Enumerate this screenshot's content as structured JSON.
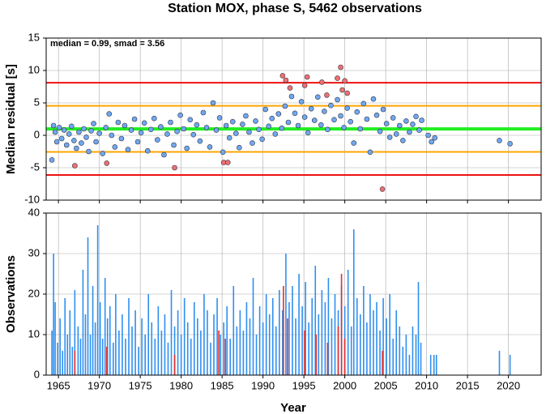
{
  "chart_data": [
    {
      "type": "scatter",
      "title": "Station MOX, phase S, 5462 observations",
      "annotation": "median = 0.99, smad = 3.56",
      "ylabel": "Median residual [s]",
      "xlim": [
        1963.5,
        2024
      ],
      "xticks": [
        1965,
        1970,
        1975,
        1980,
        1985,
        1990,
        1995,
        2000,
        2005,
        2010,
        2015,
        2020
      ],
      "ylim": [
        -10,
        15
      ],
      "yticks": [
        -10,
        -5,
        0,
        5,
        10,
        15
      ],
      "grid": true,
      "reference_lines": [
        {
          "value": 8.11,
          "color": "#ee1111"
        },
        {
          "value": 4.55,
          "color": "#ffa500"
        },
        {
          "value": 0.99,
          "color": "#22ee22"
        },
        {
          "value": -2.57,
          "color": "#ffa500"
        },
        {
          "value": -6.13,
          "color": "#ee1111"
        }
      ],
      "series": [
        {
          "color": "#6fa8f0",
          "x": [
            1964.2,
            1964.4,
            1964.6,
            1964.8,
            1965.1,
            1965.4,
            1965.7,
            1966.0,
            1966.3,
            1966.6,
            1966.9,
            1967.2,
            1967.5,
            1967.8,
            1968.1,
            1968.4,
            1968.7,
            1969.0,
            1969.3,
            1969.6,
            1970.0,
            1970.4,
            1970.8,
            1971.2,
            1971.5,
            1971.9,
            1972.3,
            1972.7,
            1973.1,
            1973.5,
            1973.9,
            1974.3,
            1974.7,
            1975.1,
            1975.5,
            1975.9,
            1976.3,
            1976.7,
            1977.1,
            1977.5,
            1977.9,
            1978.3,
            1978.7,
            1979.1,
            1979.5,
            1979.9,
            1980.3,
            1980.7,
            1981.1,
            1981.5,
            1981.9,
            1982.3,
            1982.7,
            1983.1,
            1983.5,
            1983.9,
            1984.3,
            1984.7,
            1985.1,
            1985.5,
            1985.9,
            1986.3,
            1986.7,
            1987.1,
            1987.5,
            1987.9,
            1988.3,
            1988.7,
            1989.1,
            1989.5,
            1989.9,
            1990.3,
            1990.7,
            1991.1,
            1991.5,
            1991.9,
            1992.3,
            1992.7,
            1993.1,
            1993.5,
            1993.9,
            1994.3,
            1994.7,
            1995.1,
            1995.5,
            1995.9,
            1996.3,
            1996.7,
            1997.1,
            1997.5,
            1997.9,
            1998.3,
            1998.7,
            1999.1,
            1999.5,
            1999.9,
            2000.3,
            2000.7,
            2001.1,
            2001.5,
            2001.9,
            2002.3,
            2002.7,
            2003.1,
            2003.5,
            2003.9,
            2004.3,
            2004.7,
            2005.1,
            2005.5,
            2005.9,
            2006.3,
            2006.7,
            2007.1,
            2007.5,
            2007.9,
            2008.3,
            2008.7,
            2009.1,
            2009.4,
            2010.2,
            2010.6,
            2011.0,
            2018.9,
            2020.2
          ],
          "values": [
            -3.8,
            1.5,
            0.5,
            -1.0,
            1.2,
            -0.5,
            0.8,
            -1.5,
            0.2,
            1.4,
            -0.8,
            -2.0,
            0.5,
            -1.2,
            1.0,
            -0.3,
            -2.5,
            0.7,
            1.8,
            -1.0,
            0.3,
            -2.8,
            1.2,
            3.3,
            0.0,
            -1.8,
            2.0,
            -0.5,
            1.5,
            -2.2,
            0.8,
            2.5,
            -1.0,
            0.4,
            1.9,
            -2.4,
            0.9,
            2.6,
            -0.7,
            1.3,
            -3.0,
            0.2,
            2.0,
            -1.5,
            0.6,
            3.1,
            1.0,
            -2.0,
            2.4,
            0.1,
            1.6,
            -0.9,
            3.5,
            1.2,
            -1.8,
            5.0,
            0.8,
            2.7,
            -2.6,
            1.5,
            -0.4,
            2.1,
            0.3,
            -1.9,
            1.7,
            3.0,
            0.5,
            -1.2,
            2.2,
            0.9,
            -0.6,
            4.0,
            1.4,
            2.6,
            0.2,
            3.3,
            1.1,
            4.5,
            2.0,
            6.0,
            3.4,
            1.5,
            5.2,
            2.8,
            0.4,
            4.1,
            2.3,
            5.9,
            1.6,
            3.7,
            0.9,
            4.6,
            2.4,
            5.5,
            3.0,
            1.2,
            4.2,
            2.1,
            -1.2,
            3.6,
            1.0,
            4.9,
            2.5,
            -2.6,
            5.6,
            3.1,
            0.6,
            4.0,
            1.8,
            -0.3,
            2.7,
            0.2,
            1.5,
            -0.8,
            2.2,
            0.5,
            1.7,
            2.9,
            0.8,
            2.3,
            0.0,
            -1.0,
            -0.4,
            -0.8,
            -1.3
          ]
        },
        {
          "color": "#f07070",
          "x": [
            1967.0,
            1970.9,
            1979.2,
            1985.2,
            1985.7,
            1992.4,
            1992.8,
            1993.3,
            1995.1,
            1995.4,
            1997.2,
            1997.8,
            1999.1,
            1999.5,
            1999.7,
            2000.0,
            2000.3,
            2004.6
          ],
          "values": [
            -4.7,
            -4.3,
            -5.0,
            -4.2,
            -4.2,
            9.2,
            8.5,
            7.3,
            7.7,
            9.0,
            8.2,
            6.2,
            8.8,
            10.5,
            7.0,
            8.4,
            6.5,
            -8.3
          ]
        }
      ]
    },
    {
      "type": "bar",
      "ylabel": "Observations",
      "xlabel": "Year",
      "xlim": [
        1963.5,
        2024
      ],
      "xticks": [
        1965,
        1970,
        1975,
        1980,
        1985,
        1990,
        1995,
        2000,
        2005,
        2010,
        2015,
        2020
      ],
      "ylim": [
        0,
        40
      ],
      "yticks": [
        0,
        10,
        20,
        30,
        40
      ],
      "grid": true,
      "series": [
        {
          "color": "#2f8fef",
          "x": [
            1964.2,
            1964.4,
            1964.6,
            1964.9,
            1965.2,
            1965.5,
            1965.8,
            1966.1,
            1966.4,
            1966.7,
            1967.0,
            1967.4,
            1967.7,
            1968.0,
            1968.3,
            1968.6,
            1968.9,
            1969.2,
            1969.5,
            1969.8,
            1970.1,
            1970.4,
            1970.7,
            1971.0,
            1971.3,
            1971.7,
            1972.0,
            1972.4,
            1972.8,
            1973.2,
            1973.6,
            1974.0,
            1974.4,
            1974.8,
            1975.2,
            1975.6,
            1976.0,
            1976.4,
            1976.8,
            1977.2,
            1977.6,
            1978.0,
            1978.4,
            1978.8,
            1979.2,
            1979.6,
            1980.0,
            1980.4,
            1980.8,
            1981.2,
            1981.6,
            1982.0,
            1982.4,
            1982.8,
            1983.2,
            1983.6,
            1984.0,
            1984.4,
            1984.8,
            1985.2,
            1985.6,
            1986.0,
            1986.4,
            1986.8,
            1987.2,
            1987.6,
            1988.0,
            1988.4,
            1988.8,
            1989.2,
            1989.6,
            1990.0,
            1990.4,
            1990.8,
            1991.2,
            1991.6,
            1992.0,
            1992.4,
            1992.8,
            1993.2,
            1993.6,
            1994.0,
            1994.4,
            1994.8,
            1995.2,
            1995.6,
            1996.0,
            1996.4,
            1996.8,
            1997.2,
            1997.6,
            1998.0,
            1998.4,
            1998.8,
            1999.2,
            1999.6,
            2000.0,
            2000.4,
            2000.8,
            2001.1,
            2001.5,
            2001.9,
            2002.3,
            2002.7,
            2003.1,
            2003.5,
            2003.9,
            2004.3,
            2004.7,
            2005.1,
            2005.5,
            2005.9,
            2006.3,
            2006.7,
            2007.1,
            2007.5,
            2007.9,
            2008.3,
            2008.7,
            2009.0,
            2009.3,
            2010.5,
            2010.9,
            2011.2,
            2018.9,
            2020.2
          ],
          "values": [
            11,
            30,
            18,
            8,
            14,
            6,
            19,
            10,
            16,
            7,
            21,
            12,
            9,
            26,
            15,
            34,
            10,
            22,
            13,
            37,
            18,
            9,
            24,
            14,
            17,
            8,
            20,
            11,
            15,
            9,
            19,
            12,
            16,
            7,
            14,
            10,
            20,
            13,
            9,
            17,
            11,
            15,
            8,
            21,
            12,
            16,
            10,
            19,
            13,
            9,
            18,
            14,
            11,
            20,
            16,
            8,
            15,
            19,
            10,
            13,
            17,
            9,
            22,
            12,
            16,
            11,
            18,
            14,
            24,
            10,
            17,
            13,
            20,
            15,
            19,
            12,
            21,
            16,
            30,
            18,
            22,
            14,
            25,
            17,
            23,
            13,
            19,
            27,
            15,
            21,
            18,
            24,
            14,
            20,
            16,
            22,
            17,
            26,
            12,
            36,
            19,
            15,
            22,
            13,
            20,
            16,
            18,
            11,
            19,
            14,
            20,
            9,
            16,
            12,
            7,
            10,
            5,
            12,
            10,
            23,
            8,
            5,
            5,
            5,
            6,
            5
          ]
        },
        {
          "color": "#e03030",
          "x": [
            1967.0,
            1970.9,
            1979.2,
            1984.6,
            1985.4,
            1992.5,
            1993.0,
            1995.1,
            1996.5,
            1997.9,
            1999.2,
            1999.6,
            2000.0,
            2004.6
          ],
          "values": [
            6,
            7,
            5,
            11,
            9,
            22,
            14,
            11,
            10,
            8,
            12,
            25,
            9,
            6
          ]
        }
      ]
    }
  ]
}
